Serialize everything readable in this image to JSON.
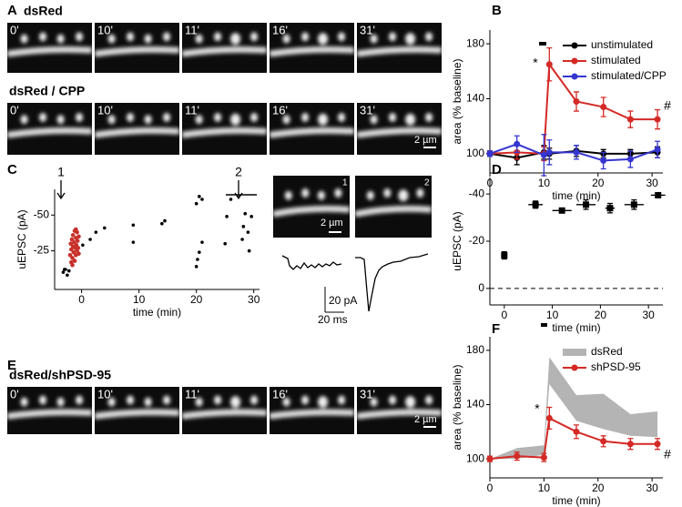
{
  "panel_labels": [
    "A",
    "B",
    "C",
    "D",
    "E",
    "F"
  ],
  "image_rows": [
    {
      "title": "dsRed",
      "frames": [
        "0'",
        "10'",
        "11'",
        "16'",
        "31'"
      ]
    },
    {
      "title": "dsRed / CPP",
      "frames": [
        "0'",
        "10'",
        "11'",
        "16'",
        "31'"
      ],
      "scale_bar": "2 µm"
    },
    {
      "title": "dsRed/shPSD-95",
      "frames": [
        "0'",
        "10'",
        "11'",
        "16'",
        "31'"
      ],
      "scale_bar": "2 µm"
    }
  ],
  "c_images": {
    "labels": [
      "1",
      "2"
    ],
    "scale_bar": "2 µm",
    "trace_scale": [
      "20 pA",
      "20 ms"
    ]
  },
  "chart_data": [
    {
      "type": "line",
      "x": [
        0,
        5,
        10,
        11,
        16,
        21,
        26,
        31
      ],
      "series": [
        {
          "name": "unstimulated",
          "color": "#000000",
          "values": [
            100,
            97,
            101,
            100,
            102,
            100,
            100,
            101
          ],
          "errors": [
            2,
            5,
            5,
            4,
            4,
            3,
            3,
            4
          ]
        },
        {
          "name": "stimulated",
          "color": "#d42a25",
          "values": [
            100,
            101,
            100,
            165,
            138,
            134,
            125,
            125
          ],
          "errors": [
            2,
            5,
            5,
            12,
            7,
            7,
            6,
            7
          ]
        },
        {
          "name": "stimulated/CPP",
          "color": "#3535d0",
          "values": [
            100,
            107,
            99,
            101,
            101,
            95,
            96,
            103
          ],
          "errors": [
            2,
            6,
            15,
            9,
            5,
            6,
            6,
            6
          ]
        }
      ],
      "xlim": [
        0,
        32
      ],
      "xticks": [
        0,
        10,
        20,
        30
      ],
      "ylim": [
        86,
        190
      ],
      "yticks": [
        100,
        140,
        180
      ],
      "xlabel": "time (min)",
      "ylabel": "area (% baseline)",
      "annotations": [
        "*",
        "#"
      ],
      "legend": "upper right"
    },
    {
      "type": "scatter",
      "series": [
        {
          "color": "#000000",
          "x": [
            -3.2,
            -2.8,
            -2.5,
            -3,
            -2.2,
            0.2,
            1.5,
            2.5,
            4,
            9,
            9,
            14,
            14.5,
            20,
            20.2,
            20.5,
            21,
            20,
            20.5,
            21,
            25,
            25.3,
            26,
            28,
            28.2,
            28.5,
            29,
            29.2,
            29.6
          ],
          "values": [
            -10,
            -12,
            -8,
            -12,
            -11,
            -29,
            -33,
            -38,
            -41,
            -43,
            -31,
            -44,
            -46,
            -14,
            -19,
            -24,
            -31,
            -58,
            -63,
            -61,
            -30,
            -49,
            -61,
            -33,
            -42,
            -51,
            -38,
            -25,
            -49
          ]
        },
        {
          "color": "#c8312b",
          "x": [
            -2,
            -1.9,
            -1.8,
            -1.8,
            -1.7,
            -1.6,
            -1.5,
            -1.5,
            -1.4,
            -1.3,
            -1.2,
            -1.2,
            -1.1,
            -1,
            -1,
            -0.9,
            -0.8,
            -0.8,
            -0.7,
            -0.6,
            -0.5,
            -0.5,
            -1.6,
            -1
          ],
          "values": [
            -22,
            -30,
            -17,
            -26,
            -33,
            -20,
            -28,
            -36,
            -24,
            -31,
            -18,
            -39,
            -27,
            -34,
            -22,
            -29,
            -38,
            -25,
            -32,
            -27,
            -35,
            -23,
            -15,
            -40
          ]
        }
      ],
      "xlim": [
        -4.7,
        31
      ],
      "xticks": [
        0,
        10,
        20,
        30
      ],
      "ylim": [
        2,
        -68
      ],
      "yticks": [
        -50,
        -25
      ],
      "xlabel": "time (min)",
      "ylabel": "uEPSC (pA)",
      "annotations": [
        "1",
        "2"
      ]
    },
    {
      "type": "errorbar",
      "x": [
        0,
        6.5,
        12,
        17,
        22,
        27,
        32
      ],
      "xerr": [
        0,
        1.5,
        2,
        2,
        1,
        2,
        1.5
      ],
      "values": [
        -14,
        -35.5,
        -33,
        -35.5,
        -34,
        -35.5,
        -39.5
      ],
      "errors": [
        1.5,
        1.5,
        1,
        2,
        2,
        2,
        1
      ],
      "color": "#000000",
      "xlim": [
        -3,
        33
      ],
      "xticks": [
        0,
        10,
        20,
        30
      ],
      "ylim": [
        7,
        -47
      ],
      "yticks": [
        -40,
        -20,
        0
      ],
      "hline": 0,
      "xlabel": "time (min)",
      "ylabel": "uEPSC (pA)"
    },
    {
      "type": "line",
      "x": [
        0,
        5,
        10,
        11,
        16,
        21,
        26,
        31
      ],
      "bands": [
        {
          "name": "dsRed",
          "color": "#b4b4b4",
          "lower": [
            100,
            100,
            103,
            155,
            128,
            122,
            117,
            116
          ],
          "upper": [
            100,
            108,
            110,
            175,
            147,
            148,
            133,
            135
          ]
        }
      ],
      "series": [
        {
          "name": "shPSD-95",
          "color": "#d42a25",
          "values": [
            100,
            102,
            101,
            130,
            120,
            113,
            111,
            111
          ],
          "errors": [
            2,
            3,
            3,
            8,
            5,
            4,
            4,
            4
          ]
        }
      ],
      "xlim": [
        0,
        32
      ],
      "xticks": [
        0,
        10,
        20,
        30
      ],
      "ylim": [
        86,
        190
      ],
      "yticks": [
        100,
        140,
        180
      ],
      "xlabel": "time (min)",
      "ylabel": "area (% baseline)",
      "annotations": [
        "*",
        "#"
      ],
      "legend": "upper right"
    }
  ]
}
